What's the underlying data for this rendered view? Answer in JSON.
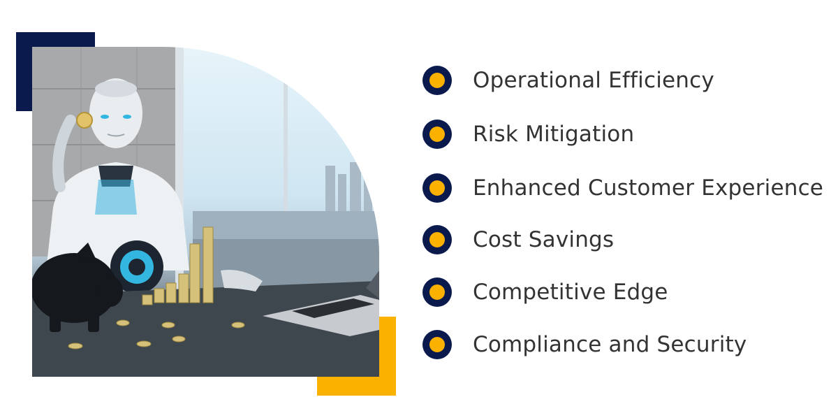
{
  "illustration": {
    "subject-icon": "robot-with-coins-icon",
    "colors": {
      "navy": "#0b1a4d",
      "accent": "#fbb100",
      "text": "#333333"
    }
  },
  "benefits": [
    {
      "label": "Operational Efficiency"
    },
    {
      "label": "Risk Mitigation"
    },
    {
      "label": "Enhanced Customer Experience"
    },
    {
      "label": "Cost Savings"
    },
    {
      "label": "Competitive Edge"
    },
    {
      "label": "Compliance and Security"
    }
  ]
}
